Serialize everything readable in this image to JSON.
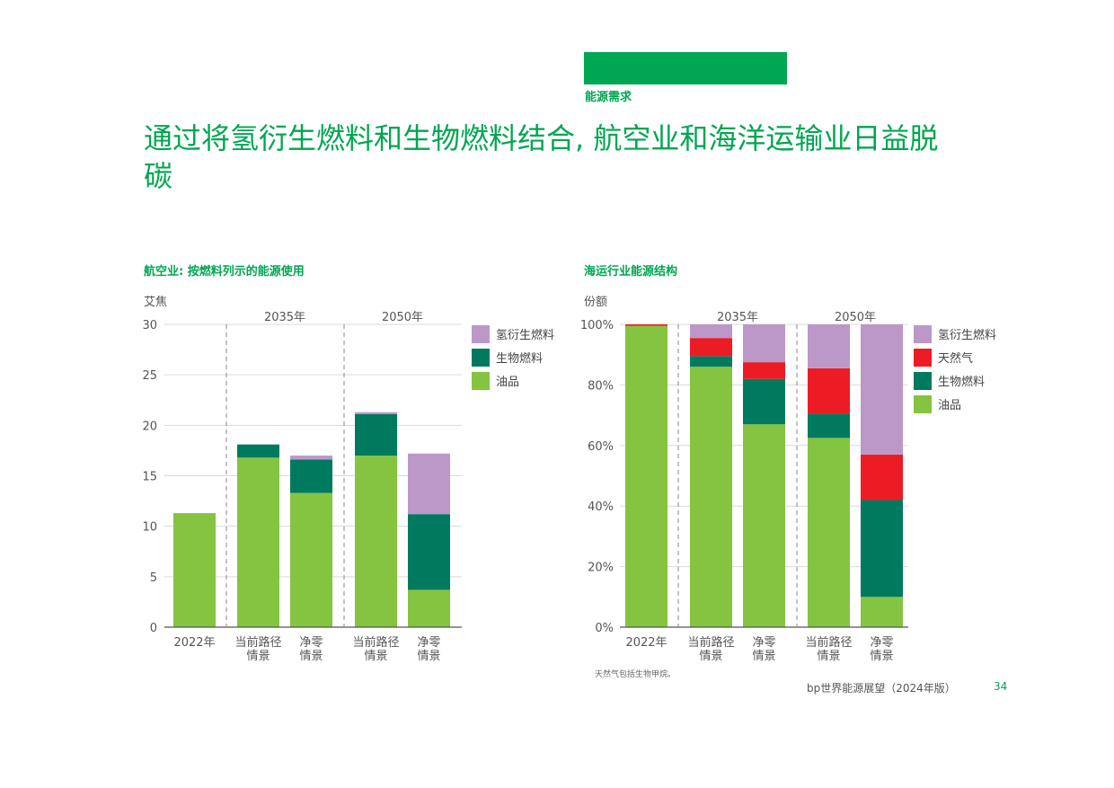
{
  "header": {
    "section": "能源需求",
    "title": "通过将氢衍生燃料和生物燃料结合, 航空业和海洋运输业日益脱碳"
  },
  "colors": {
    "brand": "#00a651",
    "oil": "#84c441",
    "bio": "#007a5e",
    "h2": "#bb98c8",
    "gas": "#ed1c24"
  },
  "chart_data": [
    {
      "type": "bar",
      "stacked": true,
      "title": "航空业: 按燃料列示的能源使用",
      "ylabel": "艾焦",
      "ylim": [
        0,
        30
      ],
      "yticks": [
        "0",
        "5",
        "10",
        "15",
        "20",
        "25",
        "30"
      ],
      "categories": [
        "2022年",
        "当前路径情景",
        "净零情景",
        "当前路径情景",
        "净零情景"
      ],
      "category_lines": [
        [
          "2022年"
        ],
        [
          "当前路径",
          "情景"
        ],
        [
          "净零",
          "情景"
        ],
        [
          "当前路径",
          "情景"
        ],
        [
          "净零",
          "情景"
        ]
      ],
      "groups": [
        {
          "label": "2035年",
          "from": 1,
          "to": 2
        },
        {
          "label": "2050年",
          "from": 3,
          "to": 4
        }
      ],
      "series": [
        {
          "name": "油品",
          "color": "#84c441",
          "values": [
            11.3,
            16.8,
            13.3,
            17.0,
            3.7
          ]
        },
        {
          "name": "生物燃料",
          "color": "#007a5e",
          "values": [
            0.0,
            1.3,
            3.3,
            4.1,
            7.5
          ]
        },
        {
          "name": "氢衍生燃料",
          "color": "#bb98c8",
          "values": [
            0.0,
            0.0,
            0.4,
            0.2,
            6.0
          ]
        }
      ],
      "legend": [
        "氢衍生燃料",
        "生物燃料",
        "油品"
      ],
      "legend_position": "right"
    },
    {
      "type": "bar",
      "stacked": true,
      "title": "海运行业能源结构",
      "ylabel": "份额",
      "ylim": [
        0,
        100
      ],
      "yticks": [
        "0%",
        "20%",
        "40%",
        "60%",
        "80%",
        "100%"
      ],
      "categories": [
        "2022年",
        "当前路径情景",
        "净零情景",
        "当前路径情景",
        "净零情景"
      ],
      "category_lines": [
        [
          "2022年"
        ],
        [
          "当前路径",
          "情景"
        ],
        [
          "净零",
          "情景"
        ],
        [
          "当前路径",
          "情景"
        ],
        [
          "净零",
          "情景"
        ]
      ],
      "groups": [
        {
          "label": "2035年",
          "from": 1,
          "to": 2
        },
        {
          "label": "2050年",
          "from": 3,
          "to": 4
        }
      ],
      "series": [
        {
          "name": "油品",
          "color": "#84c441",
          "values": [
            99.5,
            86,
            67,
            62.5,
            10
          ]
        },
        {
          "name": "生物燃料",
          "color": "#007a5e",
          "values": [
            0,
            3.5,
            15,
            8,
            32
          ]
        },
        {
          "name": "天然气",
          "color": "#ed1c24",
          "values": [
            0.5,
            6,
            5.5,
            15,
            15
          ]
        },
        {
          "name": "氢衍生燃料",
          "color": "#bb98c8",
          "values": [
            0,
            4.5,
            12.5,
            14.5,
            43
          ]
        }
      ],
      "legend": [
        "氢衍生燃料",
        "天然气",
        "生物燃料",
        "油品"
      ],
      "legend_position": "right"
    }
  ],
  "footnote": "天然气包括生物甲烷。",
  "footer": {
    "publication": "bp世界能源展望（2024年版）",
    "page": "34"
  }
}
